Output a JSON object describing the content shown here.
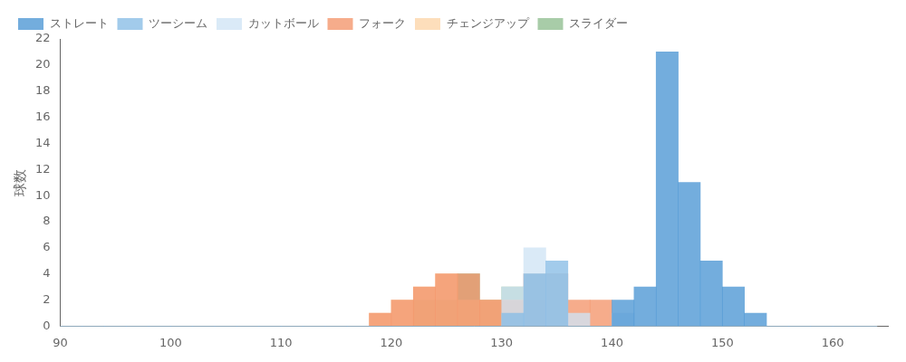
{
  "chart_data": {
    "type": "histogram",
    "ylabel": "球数",
    "bins": [
      90,
      92,
      94,
      96,
      98,
      100,
      102,
      104,
      106,
      108,
      110,
      112,
      114,
      116,
      118,
      120,
      122,
      124,
      126,
      128,
      130,
      132,
      134,
      136,
      138,
      140,
      142,
      144,
      146,
      148,
      150,
      152,
      154,
      156,
      158,
      160,
      162,
      164
    ],
    "series": [
      {
        "name": "ストレート",
        "color": "#4c96d4",
        "values": [
          0,
          0,
          0,
          0,
          0,
          0,
          0,
          0,
          0,
          0,
          0,
          0,
          0,
          0,
          0,
          0,
          0,
          0,
          0,
          0,
          0,
          0,
          0,
          0,
          0,
          2,
          3,
          21,
          11,
          5,
          3,
          1,
          0,
          0,
          0,
          0,
          0
        ]
      },
      {
        "name": "ツーシーム",
        "color": "#88bde6",
        "values": [
          0,
          0,
          0,
          0,
          0,
          0,
          0,
          0,
          0,
          0,
          0,
          0,
          0,
          0,
          0,
          0,
          0,
          0,
          0,
          0,
          1,
          4,
          5,
          0,
          0,
          0,
          0,
          0,
          0,
          0,
          0,
          0,
          0,
          0,
          0,
          0,
          0
        ]
      },
      {
        "name": "カットボール",
        "color": "#d0e4f5",
        "values": [
          0,
          0,
          0,
          0,
          0,
          0,
          0,
          0,
          0,
          0,
          0,
          0,
          0,
          0,
          0,
          0,
          0,
          0,
          0,
          0,
          3,
          6,
          4,
          1,
          0,
          1,
          0,
          0,
          0,
          0,
          0,
          0,
          0,
          0,
          0,
          0,
          0
        ]
      },
      {
        "name": "フォーク",
        "color": "#f4956a",
        "values": [
          0,
          0,
          0,
          0,
          0,
          0,
          0,
          0,
          0,
          0,
          0,
          0,
          0,
          0,
          1,
          2,
          3,
          4,
          4,
          2,
          2,
          4,
          4,
          2,
          2,
          0,
          0,
          0,
          0,
          0,
          0,
          0,
          0,
          0,
          0,
          0,
          0
        ]
      },
      {
        "name": "チェンジアップ",
        "color": "#fcd5a8",
        "values": [
          0,
          0,
          0,
          0,
          0,
          0,
          0,
          0,
          0,
          0,
          0,
          0,
          0,
          0,
          1,
          2,
          3,
          4,
          2,
          2,
          2,
          2,
          0,
          0,
          0,
          0,
          0,
          0,
          0,
          0,
          0,
          0,
          0,
          0,
          0,
          0,
          0
        ]
      },
      {
        "name": "スライダー",
        "color": "#8fbe8f",
        "values": [
          0,
          0,
          0,
          0,
          0,
          0,
          0,
          0,
          0,
          0,
          0,
          0,
          0,
          0,
          0,
          0,
          2,
          2,
          4,
          2,
          3,
          0,
          0,
          0,
          0,
          0,
          0,
          0,
          0,
          0,
          0,
          0,
          0,
          0,
          0,
          0,
          0
        ]
      }
    ],
    "xlim": [
      90,
      165
    ],
    "xticks": [
      90,
      100,
      110,
      120,
      130,
      140,
      150,
      160
    ],
    "ylim": [
      0,
      22
    ],
    "yticks": [
      0,
      2,
      4,
      6,
      8,
      10,
      12,
      14,
      16,
      18,
      20,
      22
    ],
    "grid": false,
    "legend": "upper left"
  }
}
